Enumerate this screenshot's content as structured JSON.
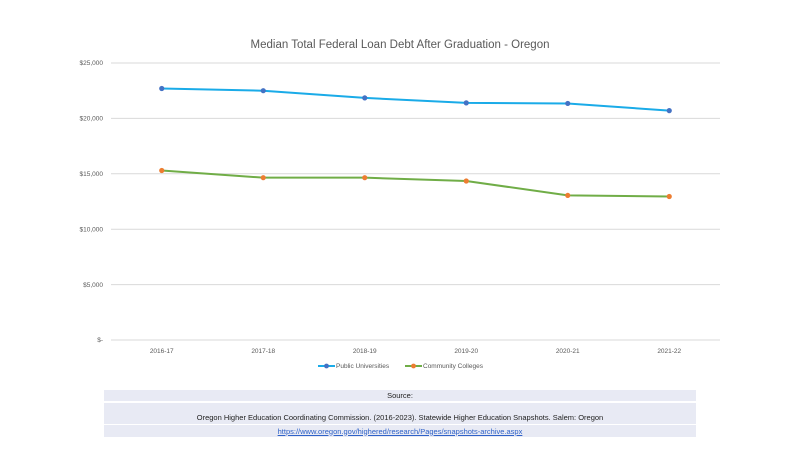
{
  "chart_data": {
    "type": "line",
    "title": "Median Total Federal Loan Debt After Graduation - Oregon",
    "xlabel": "",
    "ylabel": "",
    "categories": [
      "2016-17",
      "2017-18",
      "2018-19",
      "2019-20",
      "2020-21",
      "2021-22"
    ],
    "ylim": [
      0,
      25000
    ],
    "yticks": [
      0,
      5000,
      10000,
      15000,
      20000,
      25000
    ],
    "ytick_labels": [
      "$-",
      "$5,000",
      "$10,000",
      "$15,000",
      "$20,000",
      "$25,000"
    ],
    "grid": true,
    "legend_position": "bottom",
    "series": [
      {
        "name": "Public Universities",
        "line_color": "#1aabe8",
        "marker_color": "#4472c4",
        "values": [
          22700,
          22500,
          21850,
          21400,
          21350,
          20700
        ]
      },
      {
        "name": "Community Colleges",
        "line_color": "#70ad47",
        "marker_color": "#ed7d31",
        "values": [
          15300,
          14650,
          14650,
          14350,
          13050,
          12950
        ]
      }
    ]
  },
  "source": {
    "heading": "Source:",
    "citation": "Oregon Higher Education Coordinating Commission. (2016-2023). Statewide Higher Education Snapshots. Salem: Oregon",
    "link_text": "https://www.oregon.gov/highered/research/Pages/snapshots-archive.aspx"
  }
}
